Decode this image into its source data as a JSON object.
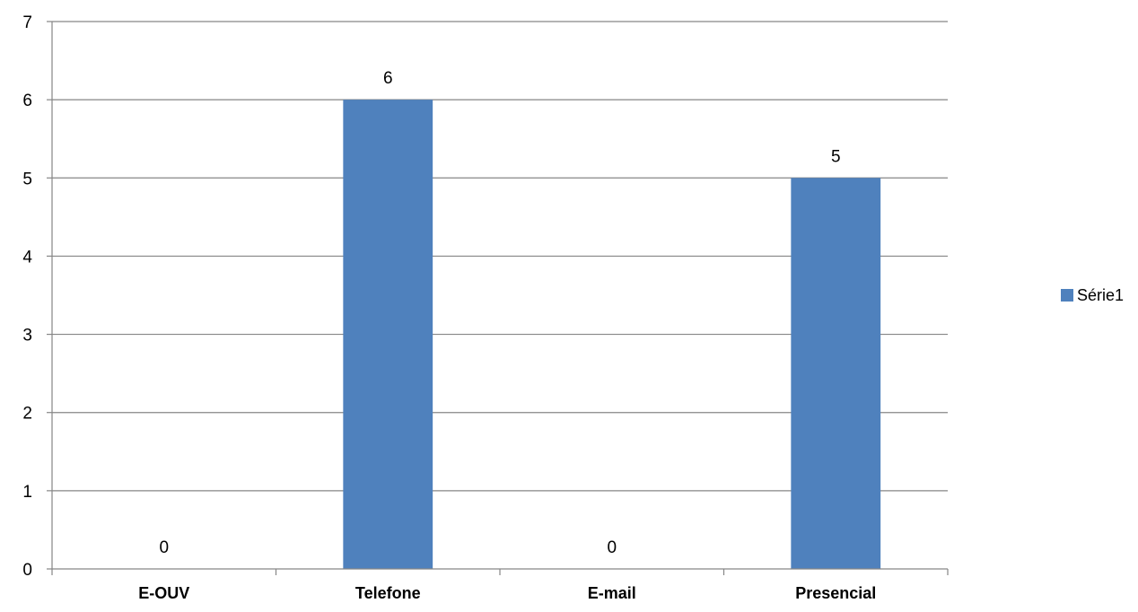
{
  "chart_data": {
    "type": "bar",
    "categories": [
      "E-OUV",
      "Telefone",
      "E-mail",
      "Presencial"
    ],
    "series": [
      {
        "name": "Série1",
        "values": [
          0,
          6,
          0,
          5
        ],
        "color": "#4F81BD"
      }
    ],
    "ylim": [
      0,
      7
    ],
    "yticks": [
      "0",
      "1",
      "2",
      "3",
      "4",
      "5",
      "6",
      "7"
    ],
    "data_labels": [
      "0",
      "6",
      "0",
      "5"
    ],
    "grid": true,
    "legend_position": "right"
  }
}
